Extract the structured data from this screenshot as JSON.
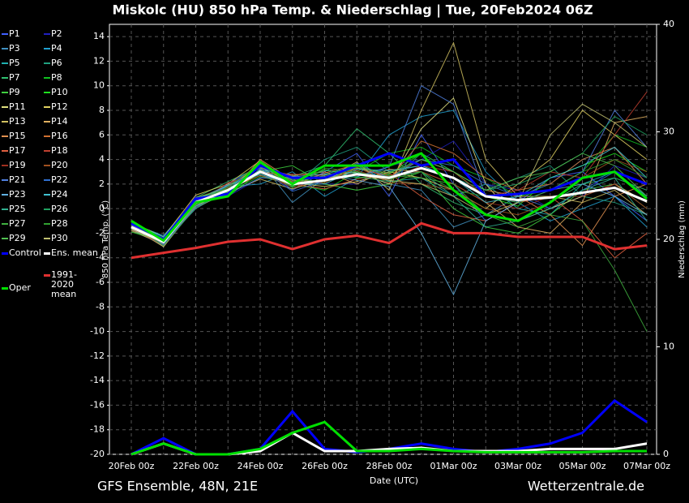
{
  "chart_data": {
    "type": "line",
    "title": "Miskolc  (HU)  850 hPa Temp. & Niederschlag | Tue, 20Feb2024 06Z",
    "subtitle": "GFS Ensemble, 48N, 21E",
    "source": "Wetterzentrale.de",
    "x_label": "Date (UTC)",
    "y_label": "850 hPa Temp. (°C)",
    "y2_label": "Niederschlag (mm)",
    "categories": [
      "20Feb 00z",
      null,
      "22Feb 00z",
      null,
      "24Feb 00z",
      null,
      "26Feb 00z",
      null,
      "28Feb 00z",
      null,
      "01Mar 00z",
      null,
      "03Mar 00z",
      null,
      "05Mar 00z",
      null,
      "07Mar 00z"
    ],
    "ylim": [
      -20,
      15
    ],
    "yticks": [
      -20,
      -18,
      -16,
      -14,
      -12,
      -10,
      -8,
      -6,
      -4,
      -2,
      0,
      2,
      4,
      6,
      8,
      10,
      12,
      14
    ],
    "y2lim": [
      0,
      40
    ],
    "y2ticks": [
      0,
      10,
      20,
      30,
      40
    ],
    "grid": true,
    "series": [
      {
        "name": "P1",
        "color": "#4060ff",
        "values": [
          -1.8,
          -2.9,
          0.2,
          2.0,
          3.5,
          1.5,
          3.0,
          4.5,
          1.0,
          6.0,
          2.0,
          -1.0,
          0.5,
          2.5,
          3.0,
          1.0,
          -1.0
        ]
      },
      {
        "name": "P2",
        "color": "#2020c0",
        "values": [
          -1.4,
          -2.5,
          1.0,
          1.0,
          2.5,
          2.5,
          2.0,
          2.0,
          3.5,
          4.0,
          5.5,
          2.0,
          1.5,
          0.0,
          1.0,
          3.5,
          2.5
        ]
      },
      {
        "name": "P3",
        "color": "#4090c0",
        "values": [
          -1.6,
          -2.8,
          0.0,
          1.5,
          3.8,
          0.5,
          2.5,
          3.0,
          2.0,
          1.5,
          -1.5,
          -0.5,
          1.0,
          2.0,
          4.0,
          5.0,
          2.0
        ]
      },
      {
        "name": "P4",
        "color": "#20a0d0",
        "values": [
          -1.2,
          -2.2,
          0.8,
          1.8,
          2.0,
          3.0,
          1.0,
          2.5,
          6.0,
          7.5,
          8.0,
          3.0,
          0.5,
          -1.0,
          0.0,
          1.0,
          -1.5
        ]
      },
      {
        "name": "P5",
        "color": "#20b0b0",
        "values": [
          -1.7,
          -3.0,
          0.4,
          1.2,
          3.2,
          2.2,
          2.8,
          3.5,
          2.2,
          2.5,
          1.0,
          2.0,
          0.0,
          -0.5,
          2.0,
          3.0,
          1.0
        ]
      },
      {
        "name": "P6",
        "color": "#20a080",
        "values": [
          -1.5,
          -2.6,
          0.6,
          1.6,
          2.8,
          1.8,
          4.0,
          5.0,
          3.0,
          3.5,
          2.5,
          1.5,
          2.5,
          3.5,
          1.0,
          0.5,
          -0.5
        ]
      },
      {
        "name": "P7",
        "color": "#30c070",
        "values": [
          -1.3,
          -2.4,
          0.9,
          2.2,
          3.4,
          2.6,
          3.5,
          6.5,
          4.5,
          2.0,
          0.5,
          -0.5,
          -1.0,
          0.5,
          2.0,
          2.5,
          1.5
        ]
      },
      {
        "name": "P8",
        "color": "#10c020",
        "values": [
          -1.9,
          -2.7,
          0.3,
          1.4,
          2.6,
          2.0,
          1.5,
          3.0,
          4.5,
          5.0,
          3.5,
          2.5,
          1.0,
          1.5,
          3.0,
          6.0,
          5.0
        ]
      },
      {
        "name": "P9",
        "color": "#40d040",
        "values": [
          -1.4,
          -2.8,
          0.5,
          1.0,
          3.0,
          3.5,
          2.0,
          1.5,
          2.0,
          3.0,
          0.0,
          -1.5,
          -2.0,
          -0.5,
          1.5,
          2.0,
          0.0
        ]
      },
      {
        "name": "P10",
        "color": "#20e020",
        "values": [
          -1.6,
          -2.5,
          0.7,
          1.7,
          3.6,
          1.8,
          3.2,
          2.5,
          2.8,
          4.5,
          3.0,
          1.0,
          0.2,
          2.5,
          3.5,
          4.5,
          3.0
        ]
      },
      {
        "name": "P11",
        "color": "#e0e080",
        "values": [
          -1.5,
          -3.1,
          0.2,
          1.5,
          3.1,
          2.4,
          2.6,
          3.0,
          2.0,
          6.5,
          9.0,
          2.0,
          -1.0,
          0.0,
          1.0,
          2.0,
          0.5
        ]
      },
      {
        "name": "P12",
        "color": "#e0d060",
        "values": [
          -1.1,
          -2.3,
          1.1,
          2.0,
          3.9,
          2.1,
          1.8,
          2.2,
          3.0,
          2.5,
          1.5,
          0.0,
          2.0,
          4.0,
          8.0,
          6.0,
          4.0
        ]
      },
      {
        "name": "P13",
        "color": "#d0c060",
        "values": [
          -1.8,
          -2.9,
          0.1,
          1.3,
          2.4,
          1.6,
          2.4,
          3.8,
          1.5,
          8.0,
          13.5,
          4.0,
          1.0,
          1.0,
          0.5,
          1.5,
          -0.5
        ]
      },
      {
        "name": "P14",
        "color": "#e0b060",
        "values": [
          -1.3,
          -2.6,
          0.7,
          1.9,
          3.3,
          2.7,
          3.0,
          2.0,
          3.2,
          3.0,
          2.0,
          0.5,
          -1.5,
          -2.0,
          0.5,
          7.0,
          7.5
        ]
      },
      {
        "name": "P15",
        "color": "#e09050",
        "values": [
          -1.7,
          -2.4,
          0.4,
          1.1,
          4.0,
          2.3,
          2.2,
          3.3,
          2.6,
          4.0,
          3.0,
          1.5,
          1.0,
          -0.5,
          -3.0,
          1.0,
          2.0
        ]
      },
      {
        "name": "P16",
        "color": "#d07030",
        "values": [
          -1.5,
          -2.8,
          0.6,
          1.6,
          2.7,
          1.9,
          2.9,
          3.6,
          2.4,
          5.5,
          4.5,
          2.5,
          1.5,
          2.0,
          4.0,
          5.0,
          2.0
        ]
      },
      {
        "name": "P17",
        "color": "#e06040",
        "values": [
          -1.2,
          -2.5,
          0.8,
          1.4,
          3.5,
          2.0,
          1.6,
          2.4,
          2.9,
          1.0,
          -0.5,
          -1.0,
          0.5,
          1.0,
          -1.0,
          -4.0,
          -2.0
        ]
      },
      {
        "name": "P18",
        "color": "#c04030",
        "values": [
          -1.6,
          -3.0,
          0.3,
          2.1,
          2.9,
          2.8,
          2.7,
          3.1,
          2.3,
          3.5,
          3.0,
          1.0,
          1.5,
          3.0,
          2.5,
          6.0,
          9.5
        ]
      },
      {
        "name": "P19",
        "color": "#a03020",
        "values": [
          -1.4,
          -2.7,
          0.5,
          1.5,
          3.0,
          1.7,
          2.5,
          2.7,
          2.7,
          3.0,
          2.0,
          0.5,
          0.0,
          1.0,
          1.0,
          2.0,
          0.0
        ]
      },
      {
        "name": "P20",
        "color": "#a05020",
        "values": [
          -1.8,
          -2.4,
          0.9,
          1.7,
          3.7,
          2.2,
          2.1,
          3.4,
          2.1,
          2.0,
          1.5,
          0.0,
          -0.5,
          0.5,
          2.5,
          4.0,
          3.0
        ]
      },
      {
        "name": "P21",
        "color": "#5080e0",
        "values": [
          -1.3,
          -2.9,
          0.2,
          1.2,
          2.5,
          2.5,
          2.6,
          2.6,
          3.4,
          10.0,
          8.5,
          1.0,
          0.5,
          1.5,
          3.0,
          8.0,
          5.0
        ]
      },
      {
        "name": "P22",
        "color": "#3070d0",
        "values": [
          -1.5,
          -2.6,
          0.6,
          1.8,
          3.3,
          1.4,
          2.3,
          3.7,
          2.5,
          4.0,
          3.5,
          2.0,
          1.0,
          0.0,
          1.5,
          3.0,
          1.0
        ]
      },
      {
        "name": "P23",
        "color": "#60b0e0",
        "values": [
          -1.7,
          -2.8,
          0.4,
          1.3,
          3.2,
          2.6,
          2.8,
          2.3,
          1.8,
          -2.0,
          -7.0,
          -1.0,
          0.5,
          1.5,
          2.0,
          1.0,
          -0.5
        ]
      },
      {
        "name": "P24",
        "color": "#40c0d0",
        "values": [
          -1.2,
          -2.3,
          0.7,
          1.9,
          2.8,
          2.0,
          2.0,
          3.2,
          3.1,
          3.5,
          2.5,
          0.5,
          1.0,
          2.5,
          3.5,
          5.0,
          2.5
        ]
      },
      {
        "name": "P25",
        "color": "#30b090",
        "values": [
          -1.6,
          -2.5,
          0.5,
          1.6,
          3.4,
          2.3,
          3.1,
          2.9,
          2.6,
          3.0,
          1.0,
          -1.5,
          -1.0,
          0.0,
          1.5,
          2.5,
          -1.0
        ]
      },
      {
        "name": "P26",
        "color": "#20a060",
        "values": [
          -1.4,
          -3.0,
          0.1,
          1.4,
          3.1,
          1.9,
          2.4,
          2.6,
          2.2,
          4.5,
          3.0,
          1.5,
          2.0,
          3.0,
          4.5,
          7.5,
          6.0
        ]
      },
      {
        "name": "P27",
        "color": "#40b040",
        "values": [
          -1.9,
          -2.6,
          0.8,
          1.5,
          2.9,
          2.4,
          2.2,
          3.5,
          2.7,
          2.5,
          2.0,
          -0.5,
          -1.5,
          -0.5,
          -1.0,
          -5.0,
          -10.0
        ]
      },
      {
        "name": "P28",
        "color": "#30a030",
        "values": [
          -1.1,
          -2.7,
          0.3,
          1.8,
          3.6,
          1.7,
          3.3,
          3.0,
          2.4,
          3.0,
          1.5,
          1.0,
          0.5,
          1.5,
          3.0,
          4.0,
          2.5
        ]
      },
      {
        "name": "P29",
        "color": "#50c050",
        "values": [
          -1.5,
          -2.4,
          0.9,
          1.6,
          3.0,
          2.1,
          2.7,
          3.3,
          2.9,
          4.0,
          3.0,
          1.5,
          2.5,
          3.0,
          4.5,
          3.5,
          1.0
        ]
      },
      {
        "name": "P30",
        "color": "#c0c070",
        "values": [
          -1.7,
          -2.8,
          0.6,
          1.3,
          3.4,
          2.5,
          2.5,
          2.8,
          2.3,
          2.0,
          1.0,
          -0.5,
          0.5,
          6.0,
          8.5,
          7.0,
          5.0
        ]
      },
      {
        "name": "Control",
        "color": "#0000ff",
        "bold": true,
        "values": [
          -1.2,
          -2.5,
          0.8,
          1.2,
          3.5,
          2.5,
          2.5,
          3.5,
          4.5,
          3.5,
          4.0,
          1.0,
          1.2,
          1.5,
          2.5,
          3.0,
          2.0
        ],
        "precip": [
          0,
          1.5,
          0,
          0,
          0.5,
          4,
          0.5,
          0.2,
          0.5,
          1,
          0.5,
          0.2,
          0.5,
          1,
          2,
          5,
          3
        ]
      },
      {
        "name": "Ens. mean",
        "color": "#ffffff",
        "bold": true,
        "values": [
          -1.5,
          -2.7,
          0.5,
          1.5,
          3,
          2,
          2.3,
          2.8,
          2.5,
          3.3,
          2.5,
          1,
          0.7,
          0.9,
          1.3,
          1.7,
          0.6
        ],
        "precip": [
          0,
          1,
          0,
          0,
          0.3,
          2,
          0.3,
          0.3,
          0.5,
          0.6,
          0.3,
          0.3,
          0.3,
          0.5,
          0.5,
          0.5,
          1
        ]
      },
      {
        "name": "1991-2020 mean",
        "color": "#e03030",
        "bold": true,
        "values": [
          -4,
          -3.6,
          -3.2,
          -2.7,
          -2.5,
          -3.3,
          -2.5,
          -2.2,
          -2.8,
          -1.2,
          -2.0,
          -2.0,
          -2.3,
          -2.3,
          -2.3,
          -3.3,
          -3.0
        ]
      },
      {
        "name": "Oper",
        "color": "#00e000",
        "bold": true,
        "values": [
          -1.0,
          -2.6,
          0.5,
          1.0,
          3.8,
          2.0,
          3.5,
          3.5,
          3.5,
          4.5,
          1.5,
          -0.5,
          -1.0,
          0.5,
          2.5,
          3.0,
          0.8
        ],
        "precip": [
          0,
          1,
          0,
          0,
          0.5,
          2,
          3,
          0.3,
          0.3,
          0.5,
          0.3,
          0.2,
          0.2,
          0.2,
          0.2,
          0.3,
          0.3
        ]
      }
    ]
  }
}
